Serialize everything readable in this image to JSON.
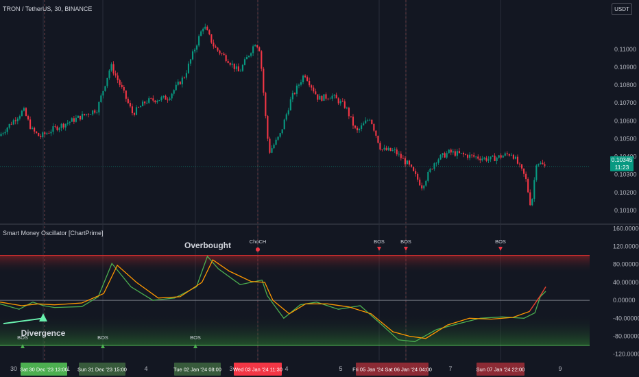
{
  "header": {
    "symbol_title": "TRON / TetherUS, 30, BINANCE",
    "currency_button": "USDT"
  },
  "indicator": {
    "title": "Smart Money Oscillator [ChartPrime]"
  },
  "last_price": {
    "value": "0.10345",
    "countdown": "11:23",
    "color": "#089981"
  },
  "colors": {
    "up": "#089981",
    "down": "#f23645",
    "osc_green": "#4caf50",
    "osc_orange": "#ff9800",
    "osc_red": "#e53935",
    "ob_line": "#d32f2f",
    "os_line": "#4caf50",
    "zero_line": "#787b86"
  },
  "annotations": {
    "overbought": "Overbought",
    "divergence": "Divergence",
    "choch": "ChoCH",
    "bos": "BOS"
  },
  "chart_data": [
    {
      "type": "candlestick",
      "title": "TRON / TetherUS, 30, BINANCE",
      "ylim": [
        0.1005,
        0.1116
      ],
      "y_ticks": [
        "0.11000",
        "0.10900",
        "0.10800",
        "0.10700",
        "0.10600",
        "0.10500",
        "0.10400",
        "0.10300",
        "0.10200",
        "0.10100"
      ],
      "price_path": [
        [
          0,
          0.10515
        ],
        [
          0.02,
          0.1058
        ],
        [
          0.045,
          0.1066
        ],
        [
          0.06,
          0.1055
        ],
        [
          0.075,
          0.1051
        ],
        [
          0.1,
          0.10555
        ],
        [
          0.14,
          0.1061
        ],
        [
          0.18,
          0.10665
        ],
        [
          0.205,
          0.1091
        ],
        [
          0.225,
          0.1078
        ],
        [
          0.245,
          0.1064
        ],
        [
          0.27,
          0.1071
        ],
        [
          0.31,
          0.1073
        ],
        [
          0.34,
          0.1085
        ],
        [
          0.375,
          0.11135
        ],
        [
          0.395,
          0.1101
        ],
        [
          0.42,
          0.1094
        ],
        [
          0.44,
          0.1087
        ],
        [
          0.47,
          0.1104
        ],
        [
          0.478,
          0.10998
        ],
        [
          0.49,
          0.1057
        ],
        [
          0.495,
          0.10425
        ],
        [
          0.515,
          0.1052
        ],
        [
          0.535,
          0.1072
        ],
        [
          0.56,
          0.10865
        ],
        [
          0.585,
          0.10725
        ],
        [
          0.61,
          0.1074
        ],
        [
          0.635,
          0.1068
        ],
        [
          0.655,
          0.10535
        ],
        [
          0.68,
          0.1062
        ],
        [
          0.7,
          0.1044
        ],
        [
          0.725,
          0.1043
        ],
        [
          0.75,
          0.10355
        ],
        [
          0.775,
          0.10235
        ],
        [
          0.8,
          0.1038
        ],
        [
          0.825,
          0.10425
        ],
        [
          0.86,
          0.10405
        ],
        [
          0.9,
          0.10385
        ],
        [
          0.94,
          0.1042
        ],
        [
          0.965,
          0.1028
        ],
        [
          0.975,
          0.10115
        ],
        [
          0.985,
          0.10375
        ],
        [
          1.0,
          0.10345
        ]
      ]
    },
    {
      "type": "line",
      "title": "Smart Money Oscillator [ChartPrime]",
      "ylim": [
        -125,
        165
      ],
      "y_ticks": [
        "160.00000",
        "120.00000",
        "80.00000",
        "40.00000",
        "0.00000",
        "-40.00000",
        "-80.00000",
        "-120.00000"
      ],
      "levels": {
        "overbought": 100,
        "zero": 0,
        "oversold": -100
      },
      "series": [
        {
          "color": "#4caf50",
          "points": [
            [
              0,
              -8
            ],
            [
              0.035,
              -20
            ],
            [
              0.06,
              -4
            ],
            [
              0.08,
              -12
            ],
            [
              0.1,
              -16
            ],
            [
              0.15,
              -14
            ],
            [
              0.18,
              8
            ],
            [
              0.205,
              82
            ],
            [
              0.24,
              30
            ],
            [
              0.28,
              0
            ],
            [
              0.32,
              5
            ],
            [
              0.36,
              30
            ],
            [
              0.38,
              98
            ],
            [
              0.4,
              70
            ],
            [
              0.44,
              35
            ],
            [
              0.48,
              45
            ],
            [
              0.49,
              10
            ],
            [
              0.52,
              -40
            ],
            [
              0.55,
              -10
            ],
            [
              0.58,
              -4
            ],
            [
              0.62,
              -20
            ],
            [
              0.66,
              -12
            ],
            [
              0.7,
              -55
            ],
            [
              0.73,
              -88
            ],
            [
              0.76,
              -92
            ],
            [
              0.8,
              -65
            ],
            [
              0.84,
              -52
            ],
            [
              0.88,
              -40
            ],
            [
              0.92,
              -37
            ],
            [
              0.96,
              -40
            ],
            [
              0.98,
              -28
            ],
            [
              0.99,
              8
            ],
            [
              1.0,
              20
            ]
          ]
        },
        {
          "color": "#ff9800",
          "points": [
            [
              0,
              -4
            ],
            [
              0.04,
              -12
            ],
            [
              0.07,
              -8
            ],
            [
              0.1,
              -10
            ],
            [
              0.15,
              -6
            ],
            [
              0.19,
              15
            ],
            [
              0.215,
              78
            ],
            [
              0.25,
              40
            ],
            [
              0.29,
              5
            ],
            [
              0.33,
              8
            ],
            [
              0.37,
              40
            ],
            [
              0.39,
              90
            ],
            [
              0.42,
              65
            ],
            [
              0.46,
              42
            ],
            [
              0.485,
              40
            ],
            [
              0.5,
              0
            ],
            [
              0.53,
              -30
            ],
            [
              0.56,
              -8
            ],
            [
              0.6,
              -8
            ],
            [
              0.64,
              -15
            ],
            [
              0.68,
              -30
            ],
            [
              0.72,
              -70
            ],
            [
              0.75,
              -80
            ],
            [
              0.78,
              -85
            ],
            [
              0.82,
              -55
            ],
            [
              0.86,
              -40
            ],
            [
              0.9,
              -42
            ],
            [
              0.94,
              -38
            ],
            [
              0.97,
              -25
            ],
            [
              0.99,
              10
            ],
            [
              1.0,
              30
            ]
          ]
        }
      ]
    }
  ],
  "x_axis": {
    "labels": [
      "30",
      "31",
      "4",
      "3",
      "4",
      "5",
      "7",
      "9"
    ],
    "highlighted": [
      {
        "text": "Sat 30 Dec '23   13:00",
        "color": "#4caf50"
      },
      {
        "text": "Sun 31 Dec '23   15:00",
        "color": "#375a3b"
      },
      {
        "text": "Tue 02 Jan '24   08:00",
        "color": "#375a3b"
      },
      {
        "text": "Wed 03 Jan '24   11:30",
        "color": "#f23645"
      },
      {
        "text": "Fri 05 Jan '24   Sat 06 Jan '24   04:00",
        "color": "#8b2a34"
      },
      {
        "text": "Sun 07 Jan '24   22:00",
        "color": "#8b2a34"
      }
    ]
  }
}
